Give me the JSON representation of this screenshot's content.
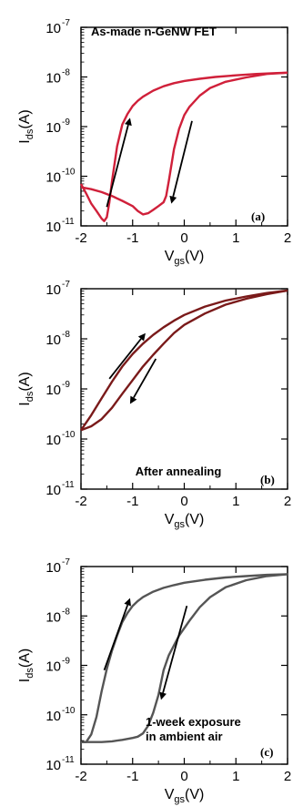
{
  "colors": {
    "a": "#d0203a",
    "b": "#7a1a1a",
    "c": "#555555"
  },
  "chart_data": [
    {
      "type": "line",
      "panel_label": "(a)",
      "title": "As-made n-GeNW FET",
      "xlabel": {
        "main": "V",
        "sub": "gs",
        "unit": "(V)"
      },
      "ylabel": {
        "main": "I",
        "sub": "ds",
        "unit": "(A)"
      },
      "xlim": [
        -2,
        2
      ],
      "ylim": [
        1e-11,
        1e-07
      ],
      "yscale": "log",
      "x_ticks": [
        "-2",
        "-1",
        "0",
        "1",
        "2"
      ],
      "y_ticks": [
        {
          "base": "10",
          "exp": "-11"
        },
        {
          "base": "10",
          "exp": "-10"
        },
        {
          "base": "10",
          "exp": "-9"
        },
        {
          "base": "10",
          "exp": "-8"
        },
        {
          "base": "10",
          "exp": "-7"
        }
      ],
      "color": "#d0203a",
      "series": [
        {
          "x": [
            -2.0,
            -1.9,
            -1.8,
            -1.7,
            -1.6,
            -1.55,
            -1.5,
            -1.45,
            -1.4,
            -1.3,
            -1.2,
            -1.1,
            -1.0,
            -0.9,
            -0.8,
            -0.6,
            -0.4,
            -0.2,
            0.0,
            0.3,
            0.6,
            1.0,
            1.4,
            1.8,
            2.0
          ],
          "y": [
            7e-11,
            4.5e-11,
            2.8e-11,
            2e-11,
            1.4e-11,
            1.25e-11,
            1.5e-11,
            3e-11,
            8e-11,
            4e-10,
            1.1e-09,
            1.8e-09,
            2.6e-09,
            3.3e-09,
            4e-09,
            5.3e-09,
            6.5e-09,
            7.5e-09,
            8.3e-09,
            9.2e-09,
            1e-08,
            1.08e-08,
            1.15e-08,
            1.2e-08,
            1.22e-08
          ]
        },
        {
          "x": [
            2.0,
            1.6,
            1.2,
            0.8,
            0.5,
            0.3,
            0.1,
            0.0,
            -0.1,
            -0.2,
            -0.3,
            -0.35,
            -0.4,
            -0.5,
            -0.6,
            -0.7,
            -0.8,
            -0.9,
            -1.0,
            -1.2,
            -1.4,
            -1.6,
            -1.8,
            -2.0
          ],
          "y": [
            1.22e-08,
            1.15e-08,
            9.8e-09,
            8e-09,
            6e-09,
            4.2e-09,
            2.5e-09,
            1.7e-09,
            9e-10,
            3.5e-10,
            8e-11,
            4e-11,
            3e-11,
            2.5e-11,
            2.1e-11,
            1.8e-11,
            1.7e-11,
            2e-11,
            2.5e-11,
            3.2e-11,
            4e-11,
            4.8e-11,
            5.5e-11,
            6e-11
          ]
        }
      ],
      "arrows": [
        {
          "from": [
            -1.5,
            2.4e-11
          ],
          "to": [
            -1.05,
            1.5e-09
          ]
        },
        {
          "from": [
            0.15,
            1.3e-09
          ],
          "to": [
            -0.25,
            2.8e-11
          ]
        }
      ]
    },
    {
      "type": "line",
      "panel_label": "(b)",
      "title": "After annealing",
      "xlabel": {
        "main": "V",
        "sub": "gs",
        "unit": "(V)"
      },
      "ylabel": {
        "main": "I",
        "sub": "ds",
        "unit": "(A)"
      },
      "xlim": [
        -2,
        2
      ],
      "ylim": [
        1e-11,
        1e-07
      ],
      "yscale": "log",
      "x_ticks": [
        "-2",
        "-1",
        "0",
        "1",
        "2"
      ],
      "y_ticks": [
        {
          "base": "10",
          "exp": "-11"
        },
        {
          "base": "10",
          "exp": "-10"
        },
        {
          "base": "10",
          "exp": "-9"
        },
        {
          "base": "10",
          "exp": "-8"
        },
        {
          "base": "10",
          "exp": "-7"
        }
      ],
      "color": "#7a1a1a",
      "series": [
        {
          "x": [
            -2.0,
            -1.8,
            -1.6,
            -1.4,
            -1.2,
            -1.0,
            -0.8,
            -0.6,
            -0.4,
            -0.2,
            0.0,
            0.4,
            0.8,
            1.2,
            1.6,
            2.0
          ],
          "y": [
            1.5e-10,
            3e-10,
            6.5e-10,
            1.4e-09,
            2.8e-09,
            5e-09,
            8e-09,
            1.2e-08,
            1.7e-08,
            2.3e-08,
            3e-08,
            4.4e-08,
            5.8e-08,
            7e-08,
            8.2e-08,
            9.2e-08
          ]
        },
        {
          "x": [
            2.0,
            1.6,
            1.2,
            0.8,
            0.4,
            0.0,
            -0.2,
            -0.4,
            -0.6,
            -0.8,
            -1.0,
            -1.2,
            -1.4,
            -1.6,
            -1.8,
            -2.0
          ],
          "y": [
            9.2e-08,
            7.8e-08,
            6.3e-08,
            4.8e-08,
            3.2e-08,
            1.9e-08,
            1.3e-08,
            8e-09,
            4.8e-09,
            2.8e-09,
            1.5e-09,
            8e-10,
            4.2e-10,
            2.5e-10,
            1.8e-10,
            1.5e-10
          ]
        }
      ],
      "arrows": [
        {
          "from": [
            -1.45,
            1.6e-09
          ],
          "to": [
            -0.75,
            1.3e-08
          ]
        },
        {
          "from": [
            -0.55,
            4e-09
          ],
          "to": [
            -1.05,
            5e-10
          ]
        }
      ]
    },
    {
      "type": "line",
      "panel_label": "(c)",
      "title": "1-week  exposure\nin ambient air",
      "xlabel": {
        "main": "V",
        "sub": "gs",
        "unit": "(V)"
      },
      "ylabel": {
        "main": "I",
        "sub": "ds",
        "unit": "(A)"
      },
      "xlim": [
        -2,
        2
      ],
      "ylim": [
        1e-11,
        1e-07
      ],
      "yscale": "log",
      "x_ticks": [
        "-2",
        "-1",
        "0",
        "1",
        "2"
      ],
      "y_ticks": [
        {
          "base": "10",
          "exp": "-11"
        },
        {
          "base": "10",
          "exp": "-10"
        },
        {
          "base": "10",
          "exp": "-9"
        },
        {
          "base": "10",
          "exp": "-8"
        },
        {
          "base": "10",
          "exp": "-7"
        }
      ],
      "color": "#555555",
      "series": [
        {
          "x": [
            -2.0,
            -1.9,
            -1.8,
            -1.7,
            -1.6,
            -1.5,
            -1.4,
            -1.3,
            -1.2,
            -1.1,
            -1.0,
            -0.9,
            -0.8,
            -0.6,
            -0.4,
            -0.2,
            0.0,
            0.4,
            0.8,
            1.2,
            1.6,
            2.0
          ],
          "y": [
            2.8e-11,
            2.8e-11,
            4e-11,
            9e-11,
            3e-10,
            8.5e-10,
            2e-09,
            4e-09,
            7.5e-09,
            1.15e-08,
            1.6e-08,
            2e-08,
            2.4e-08,
            3.1e-08,
            3.7e-08,
            4.2e-08,
            4.7e-08,
            5.4e-08,
            6e-08,
            6.4e-08,
            6.8e-08,
            7e-08
          ]
        },
        {
          "x": [
            2.0,
            1.6,
            1.2,
            0.8,
            0.5,
            0.3,
            0.1,
            -0.1,
            -0.3,
            -0.4,
            -0.5,
            -0.6,
            -0.7,
            -0.8,
            -0.9,
            -1.0,
            -1.2,
            -1.4,
            -1.6,
            -1.8,
            -2.0
          ],
          "y": [
            7e-08,
            6.4e-08,
            5.3e-08,
            3.8e-08,
            2.4e-08,
            1.5e-08,
            8e-09,
            4e-09,
            1.6e-09,
            8e-10,
            2.5e-10,
            1.1e-10,
            6e-11,
            4.2e-11,
            3.6e-11,
            3.4e-11,
            3.1e-11,
            2.9e-11,
            2.8e-11,
            2.8e-11,
            2.8e-11
          ]
        }
      ],
      "arrows": [
        {
          "from": [
            -1.55,
            8e-10
          ],
          "to": [
            -1.05,
            2.3e-08
          ]
        },
        {
          "from": [
            0.05,
            1.6e-08
          ],
          "to": [
            -0.45,
            2e-10
          ]
        }
      ]
    }
  ]
}
